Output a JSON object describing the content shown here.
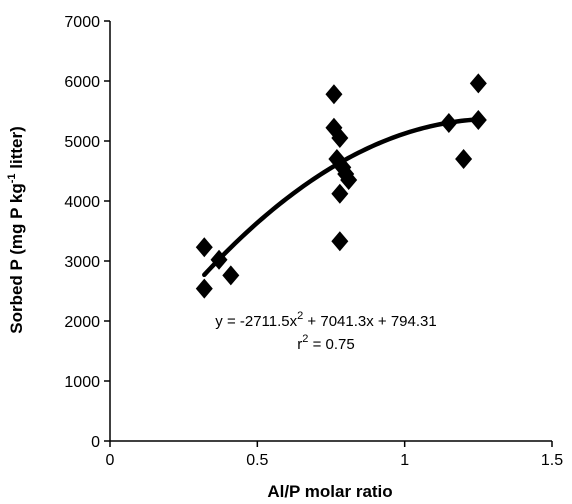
{
  "chart_data": {
    "type": "scatter",
    "title": "",
    "xlabel": "Al/P molar ratio",
    "ylabel": {
      "pre": "Sorbed P (mg P kg",
      "sup": "-1",
      "post": " litter)"
    },
    "xlim": [
      0,
      1.5
    ],
    "ylim": [
      0,
      7000
    ],
    "x_ticks": [
      0,
      0.5,
      1,
      1.5
    ],
    "x_tick_labels": [
      "0",
      "0.5",
      "1",
      "1.5"
    ],
    "y_ticks": [
      0,
      1000,
      2000,
      3000,
      4000,
      5000,
      6000,
      7000
    ],
    "y_tick_labels": [
      "0",
      "1000",
      "2000",
      "3000",
      "4000",
      "5000",
      "6000",
      "7000"
    ],
    "grid": false,
    "marker": "diamond",
    "series": [
      {
        "points": [
          {
            "x": 0.32,
            "y": 3230
          },
          {
            "x": 0.32,
            "y": 2540
          },
          {
            "x": 0.37,
            "y": 3020
          },
          {
            "x": 0.41,
            "y": 2760
          },
          {
            "x": 0.76,
            "y": 5780
          },
          {
            "x": 0.76,
            "y": 5220
          },
          {
            "x": 0.78,
            "y": 5050
          },
          {
            "x": 0.77,
            "y": 4700
          },
          {
            "x": 0.79,
            "y": 4560
          },
          {
            "x": 0.8,
            "y": 4450
          },
          {
            "x": 0.81,
            "y": 4350
          },
          {
            "x": 0.78,
            "y": 4120
          },
          {
            "x": 0.78,
            "y": 3330
          },
          {
            "x": 1.15,
            "y": 5300
          },
          {
            "x": 1.2,
            "y": 4700
          },
          {
            "x": 1.25,
            "y": 5960
          },
          {
            "x": 1.25,
            "y": 5350
          }
        ]
      }
    ],
    "fit": {
      "a": -2711.5,
      "b": 7041.3,
      "c": 794.31,
      "x_range": [
        0.32,
        1.25
      ]
    },
    "annotations": {
      "equation": {
        "pre": "y = -2711.5x",
        "sup": "2",
        "post": " + 7041.3x + 794.31"
      },
      "r2": {
        "pre": "r",
        "sup": "2",
        "post": " = 0.75"
      }
    }
  }
}
